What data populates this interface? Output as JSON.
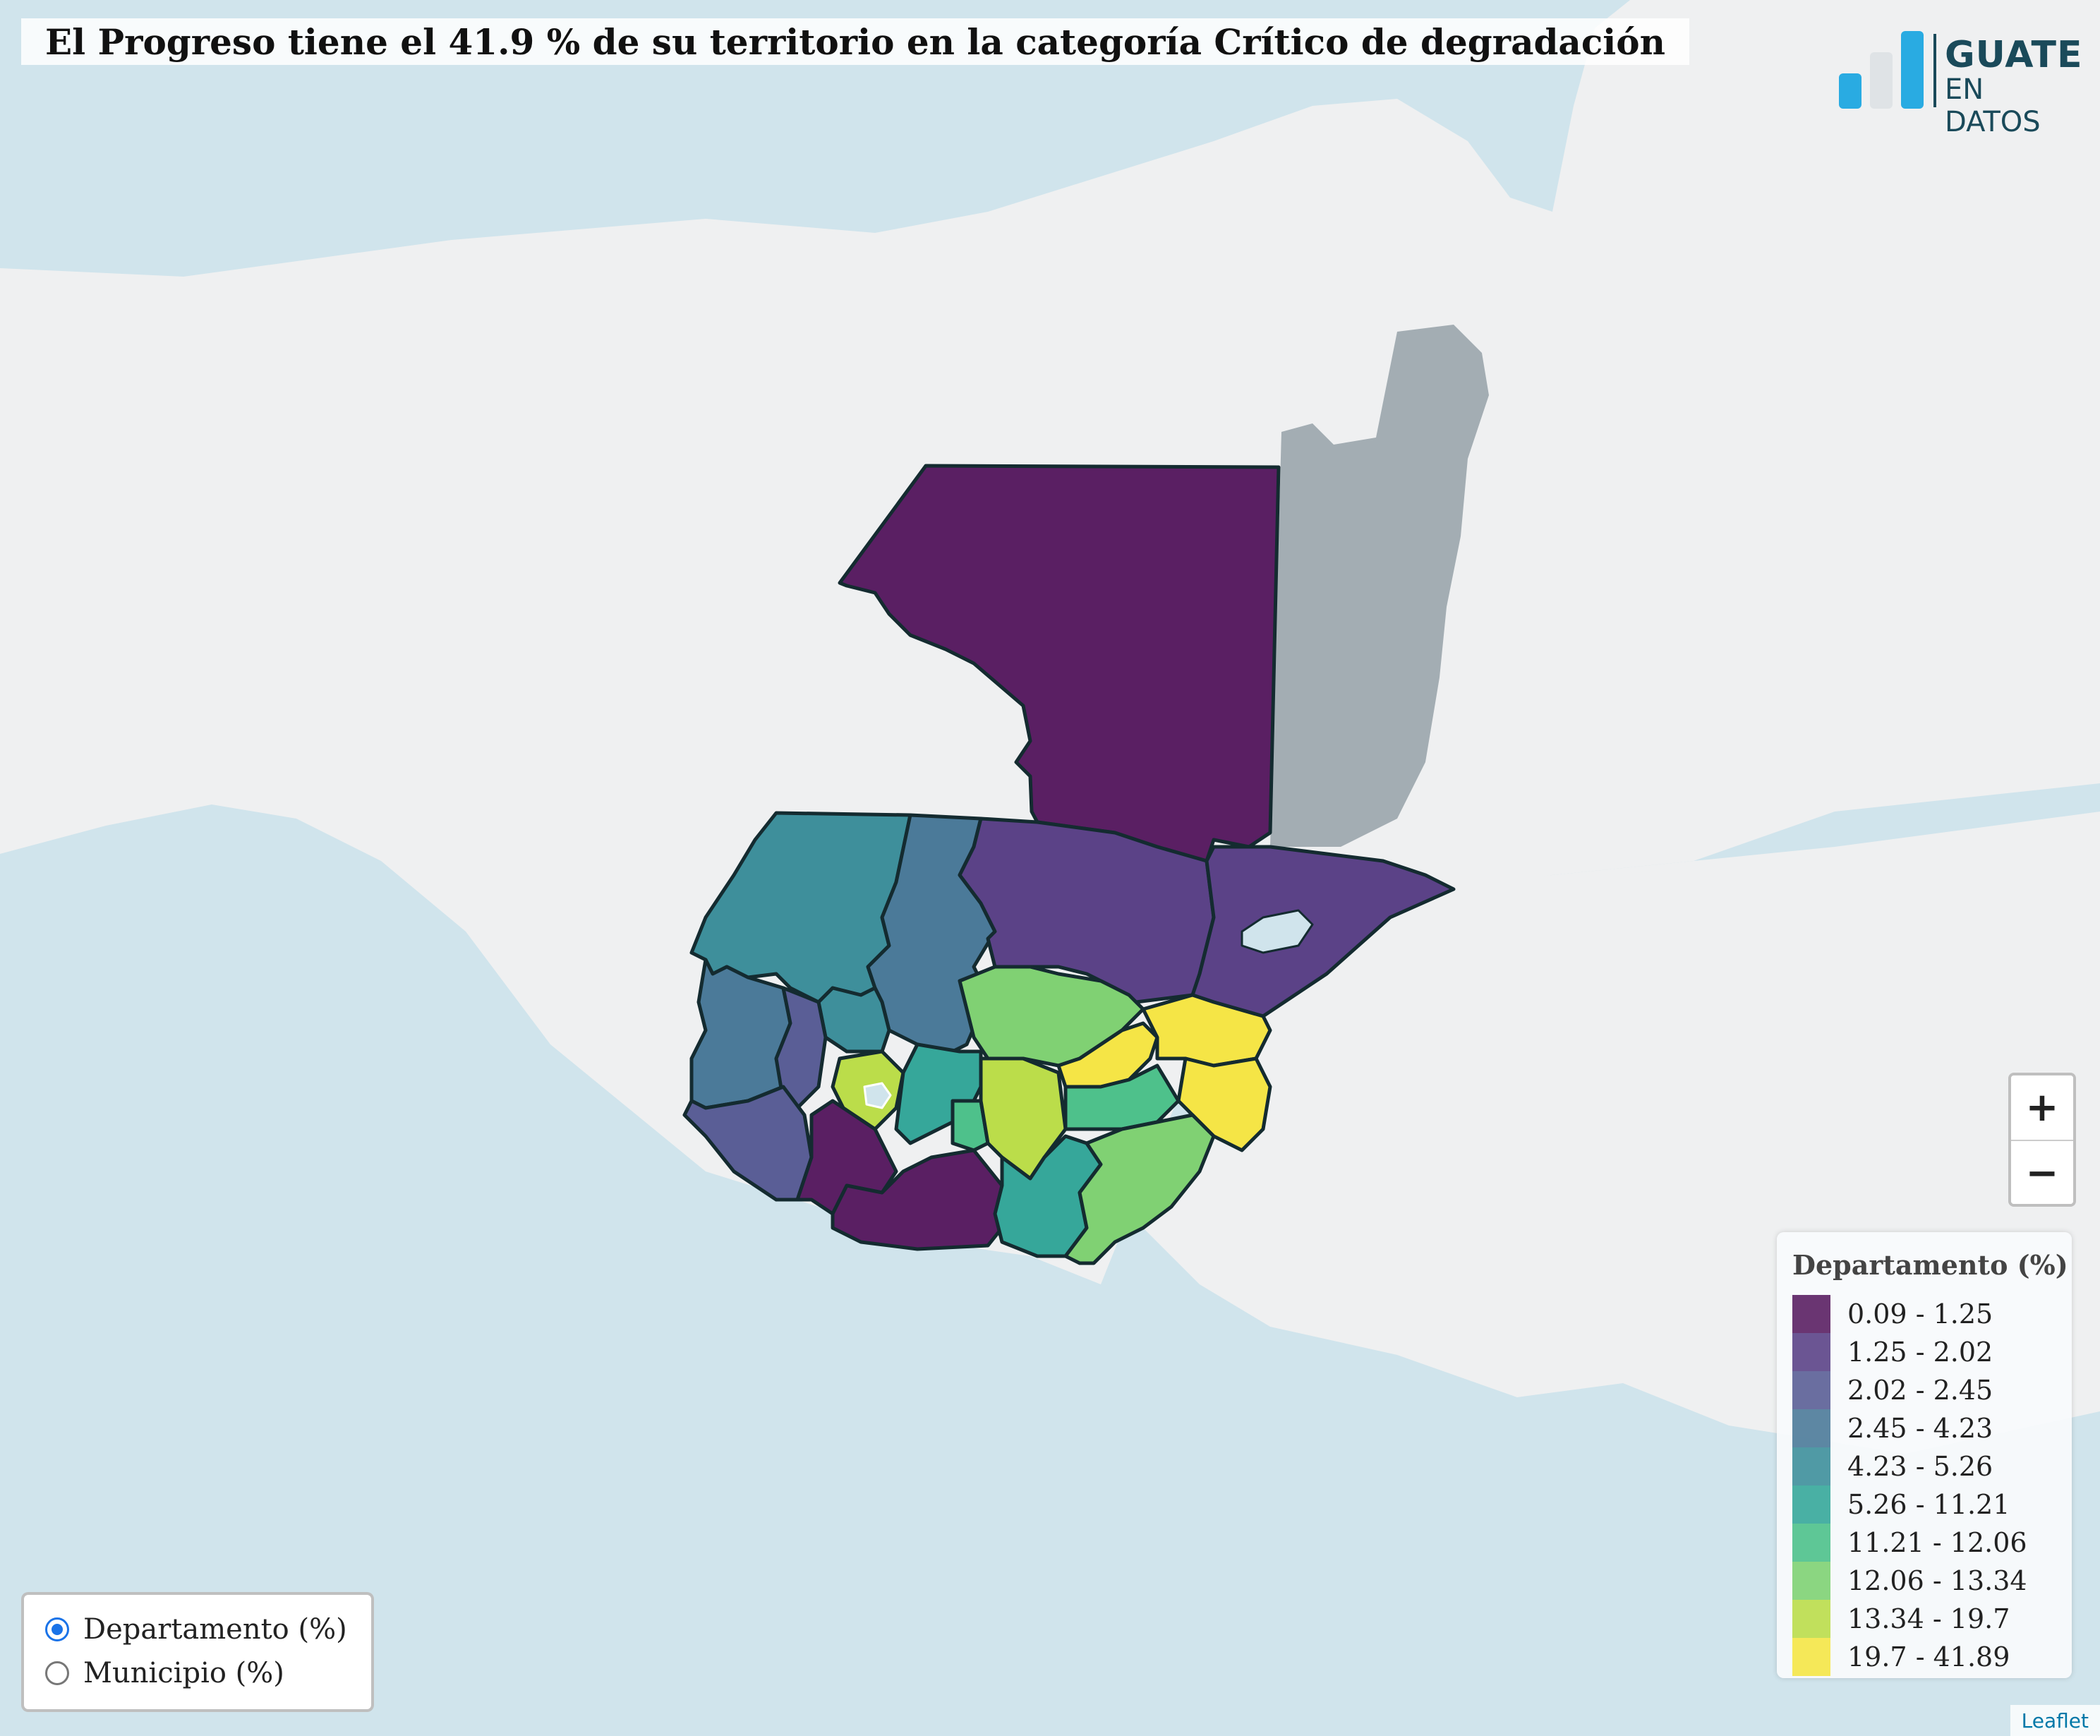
{
  "title": "El Progreso tiene el 41.9 % de su territorio en la categoría Crítico de degradación",
  "logo": {
    "line1": "GUATE",
    "line2": "EN DATOS",
    "bar_colors": [
      "#29abe2",
      "#dfe3e6",
      "#29abe2"
    ]
  },
  "zoom": {
    "in_label": "+",
    "out_label": "−"
  },
  "legend": {
    "title": "Departamento (%)",
    "items": [
      {
        "label": "0.09 - 1.25",
        "color": "#5a1f63"
      },
      {
        "label": "1.25 - 2.02",
        "color": "#5b4287"
      },
      {
        "label": "2.02 - 2.45",
        "color": "#5a5e96"
      },
      {
        "label": "2.45 - 4.23",
        "color": "#4b7a99"
      },
      {
        "label": "4.23 - 5.26",
        "color": "#3e8f9b"
      },
      {
        "label": "5.26 - 11.21",
        "color": "#36a79a"
      },
      {
        "label": "11.21 - 12.06",
        "color": "#4ec18b"
      },
      {
        "label": "12.06 - 13.34",
        "color": "#80d173"
      },
      {
        "label": "13.34 - 19.7",
        "color": "#bbdd4a"
      },
      {
        "label": "19.7 - 41.89",
        "color": "#f5e546"
      }
    ]
  },
  "layer_control": {
    "options": [
      {
        "label": "Departamento (%)",
        "selected": true
      },
      {
        "label": "Municipio (%)",
        "selected": false
      }
    ]
  },
  "attribution": "Leaflet",
  "colors": {
    "sea": "#d0e4ec",
    "land": "#eff0f1",
    "belize": "#a3adb3",
    "border": "#142b30"
  }
}
